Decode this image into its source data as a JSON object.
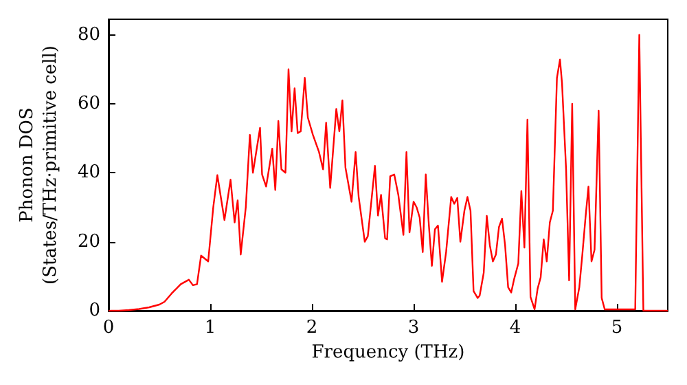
{
  "chart_data": {
    "type": "line",
    "xlabel": "Frequency (THz)",
    "ylabel": "Phonon DOS\n(States/THz·primitive cell)",
    "xlim": [
      0,
      5.5
    ],
    "xticks": [
      0,
      1,
      2,
      3,
      4,
      5
    ],
    "ylim": [
      0,
      84.5
    ],
    "yticks": [
      0,
      20,
      40,
      60,
      80
    ],
    "grid": false,
    "marker": "none",
    "line_style": "solid",
    "series": [
      {
        "color": "#ff0000",
        "x": [
          0,
          0.1,
          0.2,
          0.3,
          0.4,
          0.5,
          0.55,
          0.62,
          0.71,
          0.79,
          0.83,
          0.87,
          0.91,
          0.98,
          1.03,
          1.07,
          1.14,
          1.2,
          1.24,
          1.27,
          1.3,
          1.35,
          1.39,
          1.42,
          1.49,
          1.51,
          1.55,
          1.61,
          1.64,
          1.67,
          1.7,
          1.74,
          1.77,
          1.8,
          1.83,
          1.86,
          1.89,
          1.93,
          1.96,
          2.01,
          2.07,
          2.11,
          2.14,
          2.18,
          2.24,
          2.27,
          2.3,
          2.33,
          2.39,
          2.43,
          2.46,
          2.52,
          2.55,
          2.62,
          2.65,
          2.68,
          2.72,
          2.74,
          2.77,
          2.81,
          2.85,
          2.9,
          2.93,
          2.96,
          3.0,
          3.03,
          3.06,
          3.09,
          3.12,
          3.15,
          3.18,
          3.21,
          3.24,
          3.28,
          3.32,
          3.37,
          3.4,
          3.43,
          3.46,
          3.5,
          3.53,
          3.56,
          3.59,
          3.63,
          3.65,
          3.69,
          3.72,
          3.75,
          3.78,
          3.81,
          3.84,
          3.87,
          3.9,
          3.93,
          3.96,
          3.99,
          4.03,
          4.06,
          4.09,
          4.12,
          4.15,
          4.19,
          4.22,
          4.25,
          4.28,
          4.31,
          4.34,
          4.37,
          4.41,
          4.44,
          4.46,
          4.5,
          4.53,
          4.56,
          4.59,
          4.63,
          4.66,
          4.69,
          4.72,
          4.75,
          4.78,
          4.82,
          4.85,
          4.88,
          5.18,
          5.22,
          5.26,
          5.5
        ],
        "values": [
          0,
          0,
          0.2,
          0.5,
          1,
          1.8,
          2.6,
          5,
          7.7,
          9,
          7.4,
          7.7,
          16,
          14.3,
          30,
          39.3,
          26.3,
          38,
          25.6,
          32,
          16.3,
          30,
          51,
          40,
          53,
          39.5,
          36,
          47,
          35,
          55,
          41,
          40,
          70,
          52,
          64.5,
          51.5,
          52,
          67.5,
          56,
          51,
          46,
          41,
          54.5,
          35.6,
          58.5,
          52,
          61,
          41.5,
          31.6,
          46,
          33,
          20,
          21.6,
          42,
          27.6,
          33.6,
          21,
          20.7,
          39,
          39.5,
          33.6,
          22,
          46,
          22.7,
          31.6,
          30,
          27,
          17,
          39.5,
          25,
          13,
          23.6,
          24.7,
          8.4,
          17,
          33,
          31,
          32.7,
          20,
          29,
          33,
          29,
          5.7,
          3.7,
          4.4,
          11,
          27.5,
          19,
          14.3,
          16.3,
          24.3,
          26.7,
          19,
          6.8,
          5.3,
          9.3,
          13.7,
          34.7,
          18.3,
          55.4,
          4,
          0.4,
          6.4,
          9.7,
          20.7,
          14.3,
          25.6,
          29,
          67.5,
          72.8,
          66,
          41,
          8.8,
          60,
          0.4,
          6.8,
          16.3,
          26.7,
          36,
          14.3,
          17.7,
          58,
          3.7,
          0.4,
          0.4,
          80,
          0,
          0
        ]
      }
    ]
  }
}
